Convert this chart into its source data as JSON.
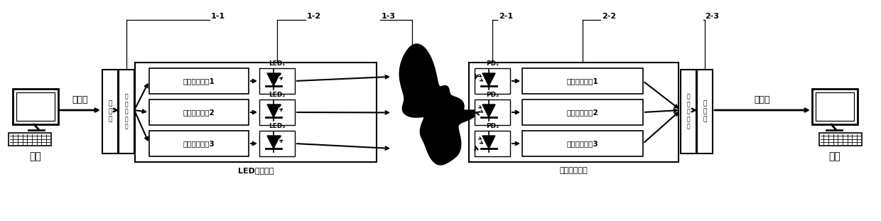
{
  "fig_width": 12.4,
  "fig_height": 3.11,
  "dpi": 100,
  "bg_color": "#ffffff",
  "label_11": "1-1",
  "label_12": "1-2",
  "label_13": "1-3",
  "label_21": "2-1",
  "label_22": "2-2",
  "label_23": "2-3",
  "terminal_left": "终端",
  "terminal_right": "终端",
  "data_flow_left": "数据流",
  "data_flow_right": "数据流",
  "led_drive": "LED驱动电路",
  "signal_proc": "信号处理电路",
  "drive_circuits": [
    "驱动放大电路1",
    "驱动放大电路2",
    "驱动放大电路3"
  ],
  "signal_circuits": [
    "信号处理电路1",
    "信号处理电路2",
    "信号处理电路3"
  ],
  "led_labels": [
    "LED₁",
    "LED₂",
    "LED₃"
  ],
  "pd_labels": [
    "PD₁",
    "PD₂",
    "PD₃"
  ],
  "enc_text": "编码器",
  "dec_text": "解码器",
  "mux_text": "多路复用器",
  "demux_text": "多路复用器"
}
